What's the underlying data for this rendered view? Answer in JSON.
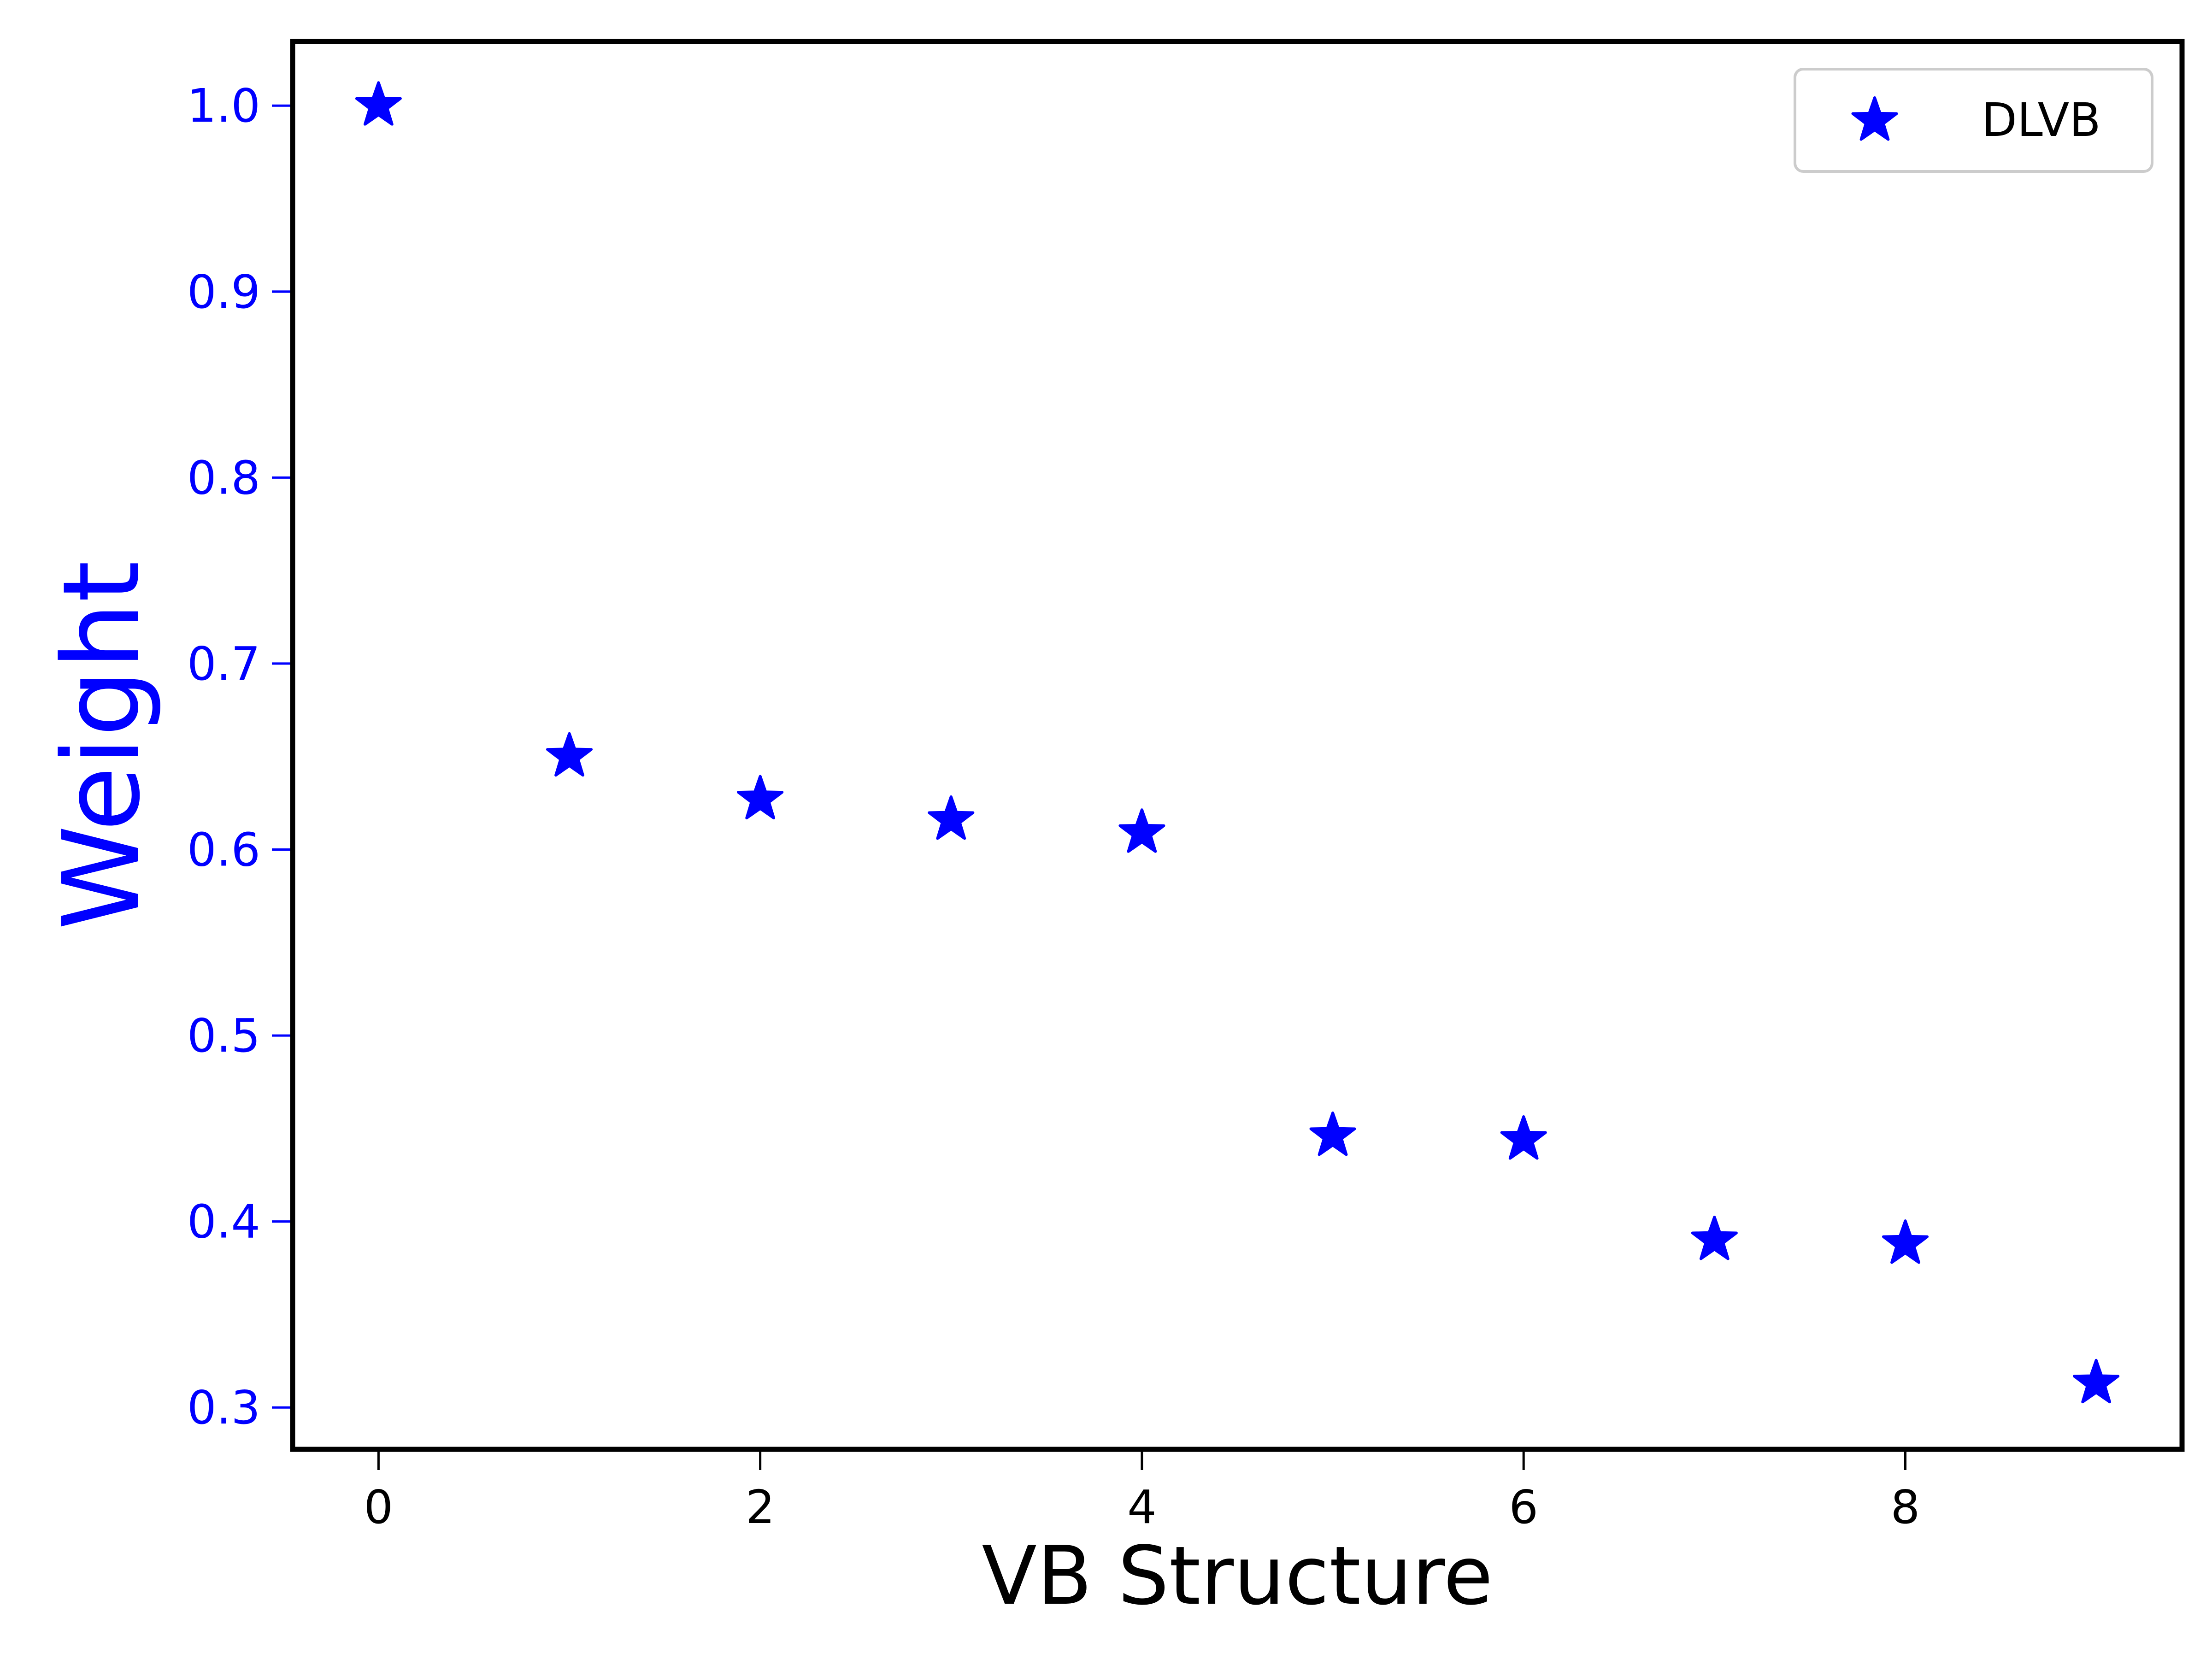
{
  "chart_data": {
    "type": "scatter",
    "title": "",
    "xlabel": "VB Structure",
    "ylabel": "Weight",
    "xlim": [
      -0.45,
      9.45
    ],
    "ylim": [
      0.2775,
      1.0345
    ],
    "x_ticks": [
      0,
      2,
      4,
      6,
      8
    ],
    "x_tick_labels": [
      "0",
      "2",
      "4",
      "6",
      "8"
    ],
    "y_ticks": [
      0.3,
      0.4,
      0.5,
      0.6,
      0.7,
      0.8,
      0.9,
      1.0
    ],
    "y_tick_labels": [
      "0.3",
      "0.4",
      "0.5",
      "0.6",
      "0.7",
      "0.8",
      "0.9",
      "1.0"
    ],
    "grid": false,
    "legend_position": "top-right",
    "series": [
      {
        "name": "DLVB",
        "marker": "star",
        "color": "#0000ff",
        "x": [
          0,
          1,
          2,
          3,
          4,
          5,
          6,
          7,
          8,
          9
        ],
        "y": [
          1.0,
          0.65,
          0.627,
          0.616,
          0.609,
          0.446,
          0.444,
          0.39,
          0.388,
          0.313
        ]
      }
    ],
    "colors": {
      "marker": "#0000ff",
      "y_axis_text": "#0000ff",
      "x_axis_text": "#000000",
      "frame": "#000000"
    }
  }
}
